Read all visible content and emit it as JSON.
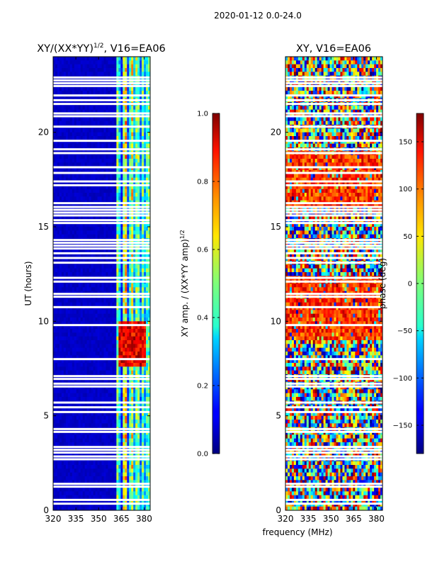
{
  "chart_data": {
    "suptitle": "2020-01-12 0.0-24.0",
    "xlabel": "frequency (MHz)",
    "panels": [
      {
        "type": "heatmap",
        "title": "XY/(XX*YY)",
        "title_sup": "1/2",
        "title_suffix": ", V16=EA06",
        "ylabel": "UT (hours)",
        "xlim": [
          320,
          384
        ],
        "ylim": [
          0,
          24
        ],
        "xticks": [
          "320",
          "335",
          "350",
          "365",
          "380"
        ],
        "xtick_values": [
          320,
          335,
          350,
          365,
          380
        ],
        "yticks": [
          "0",
          "5",
          "10",
          "15",
          "20"
        ],
        "ytick_values": [
          0,
          5,
          10,
          15,
          20
        ],
        "colorbar": {
          "label": "XY amp. / (XX*YY amp)",
          "label_sup": "1/2",
          "range": [
            0.0,
            1.0
          ],
          "ticks": [
            "0.0",
            "0.2",
            "0.4",
            "0.6",
            "0.8",
            "1.0"
          ],
          "tick_values": [
            0.0,
            0.2,
            0.4,
            0.6,
            0.8,
            1.0
          ]
        },
        "summary": "Low amplitude (~0.05) below 362 MHz; higher amplitude stripes 362-382 MHz, strongest (~0.9) near 363-380 MHz between 7.5 and 10 UT hours"
      },
      {
        "type": "heatmap",
        "title": "XY, V16=EA06",
        "xlim": [
          320,
          384
        ],
        "ylim": [
          0,
          24
        ],
        "xticks": [
          "320",
          "335",
          "350",
          "365",
          "380"
        ],
        "xtick_values": [
          320,
          335,
          350,
          365,
          380
        ],
        "yticks": [
          "0",
          "5",
          "10",
          "15",
          "20"
        ],
        "ytick_values": [
          0,
          5,
          10,
          15,
          20
        ],
        "colorbar": {
          "label": "phase (deg)",
          "range": [
            -180,
            180
          ],
          "ticks": [
            "−150",
            "−100",
            "−50",
            "0",
            "50",
            "100",
            "150"
          ],
          "tick_values": [
            -150,
            -100,
            -50,
            0,
            50,
            100,
            150
          ]
        },
        "summary": "Phase spans full -180 to 180 deg range; warm (50-150 deg) bands dominate 9-12 and 16-19 UT hours"
      }
    ],
    "flagged_hours": [
      0.35,
      0.55,
      1.25,
      1.4,
      2.7,
      2.85,
      3.05,
      3.2,
      3.35,
      4.15,
      4.3,
      5.2,
      5.45,
      5.7,
      6.55,
      6.7,
      6.95,
      7.1,
      8.0,
      9.8,
      10.75,
      11.3,
      11.45,
      12.1,
      12.3,
      13.1,
      13.35,
      13.6,
      13.85,
      14.0,
      14.15,
      14.3,
      15.2,
      15.35,
      15.6,
      15.75,
      15.9,
      16.05,
      16.25,
      17.2,
      17.4,
      17.85,
      18.15,
      18.9,
      19.1,
      19.55,
      20.3,
      20.85,
      21.0,
      21.5,
      21.7,
      21.95,
      22.45,
      22.6,
      22.75,
      22.9
    ]
  }
}
